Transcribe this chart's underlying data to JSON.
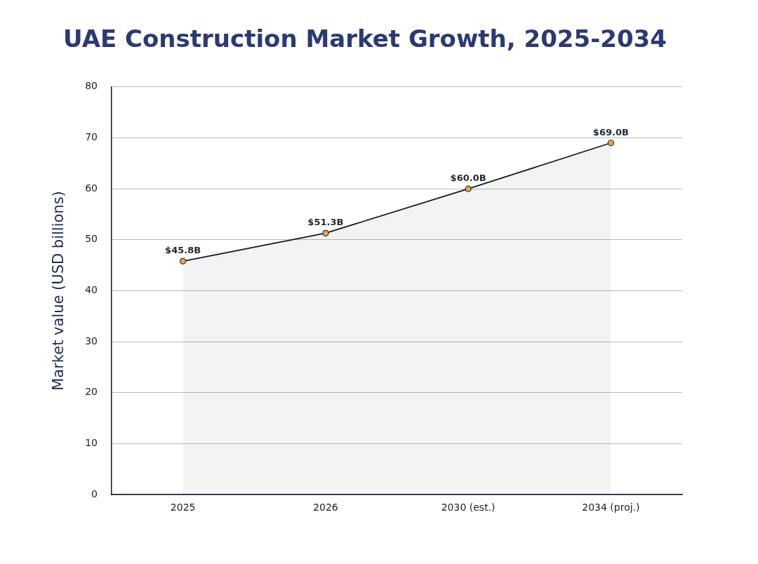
{
  "chart_data": {
    "type": "area",
    "title": "UAE Construction Market Growth, 2025-2034",
    "ylabel": "Market value (USD billions)",
    "categories": [
      "2025",
      "2026",
      "2030 (est.)",
      "2034 (proj.)"
    ],
    "series": [
      {
        "color": "#111827",
        "values": [
          45.8,
          51.3,
          60.0,
          69.0
        ],
        "value_labels": [
          "$45.8B",
          "$51.3B",
          "$60.0B",
          "$69.0B"
        ]
      }
    ],
    "ylim": [
      0,
      80
    ],
    "yticks": [
      0,
      10,
      20,
      30,
      40,
      50,
      60,
      70,
      80
    ],
    "grid": "y",
    "legend": false,
    "marker": "circle",
    "line_style": "solid"
  }
}
